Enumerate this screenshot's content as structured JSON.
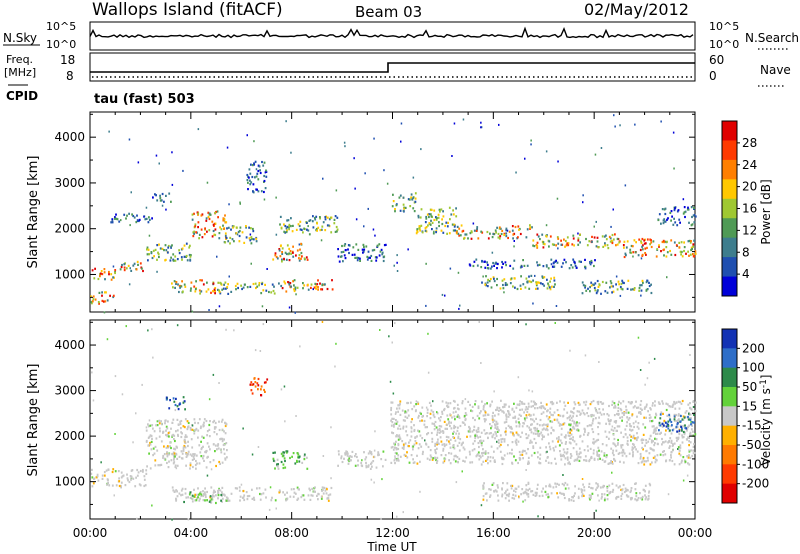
{
  "header": {
    "station": "Wallops Island (fitACF)",
    "beam": "Beam 03",
    "date": "02/May/2012"
  },
  "sky_panel": {
    "left_label": "N.Sky",
    "right_label": "N.Search",
    "top_tick": "10^5",
    "bottom_tick": "10^0"
  },
  "freq_panel": {
    "left_label_1": "Freq.",
    "left_label_2": "[MHz]",
    "right_label": "Nave",
    "left_ticks": [
      "18",
      "8"
    ],
    "right_ticks": [
      "60",
      "0"
    ],
    "cpid_label": "CPID",
    "mode_text": "tau (fast) 503"
  },
  "chart_data": [
    {
      "type": "heatmap",
      "name": "power",
      "ylabel": "Slant Range [km]",
      "xlabel": "",
      "y_ticks": [
        1000,
        2000,
        3000,
        4000
      ],
      "ylim": [
        180,
        4550
      ],
      "x_ticks": [
        "00:00",
        "04:00",
        "08:00",
        "12:00",
        "16:00",
        "20:00",
        "00:00"
      ],
      "xlim_hours": [
        0,
        24
      ],
      "colorbar": {
        "label": "Power [dB]",
        "ticks": [
          "4",
          "8",
          "12",
          "16",
          "20",
          "24",
          "28"
        ],
        "colors": [
          "#0000d8",
          "#1f4fb0",
          "#3d7d8d",
          "#4f9a55",
          "#9fc832",
          "#ffc800",
          "#ff7f00",
          "#ff3a00",
          "#e00000"
        ]
      },
      "echo_regions": [
        {
          "t0": 0.0,
          "t1": 1.0,
          "r0": 900,
          "r1": 1150,
          "level": "high"
        },
        {
          "t0": 0.0,
          "t1": 1.0,
          "r0": 380,
          "r1": 640,
          "level": "high"
        },
        {
          "t0": 1.0,
          "t1": 2.2,
          "r0": 1100,
          "r1": 1300,
          "level": "high"
        },
        {
          "t0": 2.2,
          "t1": 4.0,
          "r0": 1300,
          "r1": 1700,
          "level": "mid"
        },
        {
          "t0": 4.0,
          "t1": 5.4,
          "r0": 1800,
          "r1": 2400,
          "level": "high"
        },
        {
          "t0": 0.8,
          "t1": 2.6,
          "r0": 2150,
          "r1": 2350,
          "level": "low"
        },
        {
          "t0": 2.4,
          "t1": 3.2,
          "r0": 2600,
          "r1": 2800,
          "level": "low"
        },
        {
          "t0": 3.2,
          "t1": 5.0,
          "r0": 600,
          "r1": 900,
          "level": "high"
        },
        {
          "t0": 5.0,
          "t1": 7.3,
          "r0": 600,
          "r1": 850,
          "level": "mid"
        },
        {
          "t0": 7.3,
          "t1": 9.6,
          "r0": 650,
          "r1": 900,
          "level": "high"
        },
        {
          "t0": 5.3,
          "t1": 6.6,
          "r0": 1700,
          "r1": 2100,
          "level": "mid"
        },
        {
          "t0": 6.2,
          "t1": 7.0,
          "r0": 2800,
          "r1": 3500,
          "level": "low"
        },
        {
          "t0": 7.2,
          "t1": 8.6,
          "r0": 1300,
          "r1": 1700,
          "level": "high"
        },
        {
          "t0": 7.5,
          "t1": 9.8,
          "r0": 1900,
          "r1": 2300,
          "level": "mid"
        },
        {
          "t0": 9.8,
          "t1": 11.7,
          "r0": 1300,
          "r1": 1700,
          "level": "low"
        },
        {
          "t0": 11.9,
          "t1": 12.9,
          "r0": 2400,
          "r1": 2800,
          "level": "mid"
        },
        {
          "t0": 12.9,
          "t1": 14.5,
          "r0": 1900,
          "r1": 2500,
          "level": "mid"
        },
        {
          "t0": 14.5,
          "t1": 17.5,
          "r0": 1800,
          "r1": 2100,
          "level": "high"
        },
        {
          "t0": 17.5,
          "t1": 21.0,
          "r0": 1600,
          "r1": 1900,
          "level": "high"
        },
        {
          "t0": 21.0,
          "t1": 24.0,
          "r0": 1400,
          "r1": 1800,
          "level": "high"
        },
        {
          "t0": 15.5,
          "t1": 18.5,
          "r0": 700,
          "r1": 1000,
          "level": "mid"
        },
        {
          "t0": 19.5,
          "t1": 22.3,
          "r0": 600,
          "r1": 900,
          "level": "mid"
        },
        {
          "t0": 15.0,
          "t1": 20.0,
          "r0": 1150,
          "r1": 1350,
          "level": "low"
        },
        {
          "t0": 22.5,
          "t1": 24.0,
          "r0": 2100,
          "r1": 2500,
          "level": "low"
        }
      ]
    },
    {
      "type": "heatmap",
      "name": "velocity",
      "ylabel": "Slant Range [km]",
      "xlabel": "Time UT",
      "y_ticks": [
        1000,
        2000,
        3000,
        4000
      ],
      "ylim": [
        180,
        4550
      ],
      "x_ticks": [
        "00:00",
        "04:00",
        "08:00",
        "12:00",
        "16:00",
        "20:00",
        "00:00"
      ],
      "xlim_hours": [
        0,
        24
      ],
      "colorbar": {
        "label": "Velocity [m s^-1]",
        "ticks": [
          "200",
          "100",
          "50",
          "15",
          "-15",
          "-50",
          "-100",
          "-200"
        ],
        "colors": [
          "#1232b4",
          "#2e6ec8",
          "#2d8a4a",
          "#63d23a",
          "#c8c8c8",
          "#ffb000",
          "#ff7a00",
          "#ff3a00",
          "#e00000"
        ]
      },
      "echo_regions": [
        {
          "t0": 0.0,
          "t1": 2.2,
          "r0": 900,
          "r1": 1300,
          "level": "ground"
        },
        {
          "t0": 2.2,
          "t1": 5.4,
          "r0": 1300,
          "r1": 2400,
          "level": "ground"
        },
        {
          "t0": 3.2,
          "t1": 9.6,
          "r0": 600,
          "r1": 900,
          "level": "ground"
        },
        {
          "t0": 3.6,
          "t1": 5.4,
          "r0": 550,
          "r1": 800,
          "level": "pos_small"
        },
        {
          "t0": 7.2,
          "t1": 8.6,
          "r0": 1300,
          "r1": 1700,
          "level": "pos_small"
        },
        {
          "t0": 6.3,
          "t1": 7.0,
          "r0": 2900,
          "r1": 3300,
          "level": "neg_large"
        },
        {
          "t0": 3.0,
          "t1": 3.8,
          "r0": 2600,
          "r1": 2900,
          "level": "pos_large"
        },
        {
          "t0": 9.8,
          "t1": 11.7,
          "r0": 1300,
          "r1": 1700,
          "level": "ground"
        },
        {
          "t0": 11.9,
          "t1": 24.0,
          "r0": 1400,
          "r1": 2800,
          "level": "ground"
        },
        {
          "t0": 15.5,
          "t1": 22.3,
          "r0": 600,
          "r1": 1000,
          "level": "ground"
        },
        {
          "t0": 22.5,
          "t1": 24.0,
          "r0": 2100,
          "r1": 2500,
          "level": "pos_large"
        }
      ]
    }
  ]
}
